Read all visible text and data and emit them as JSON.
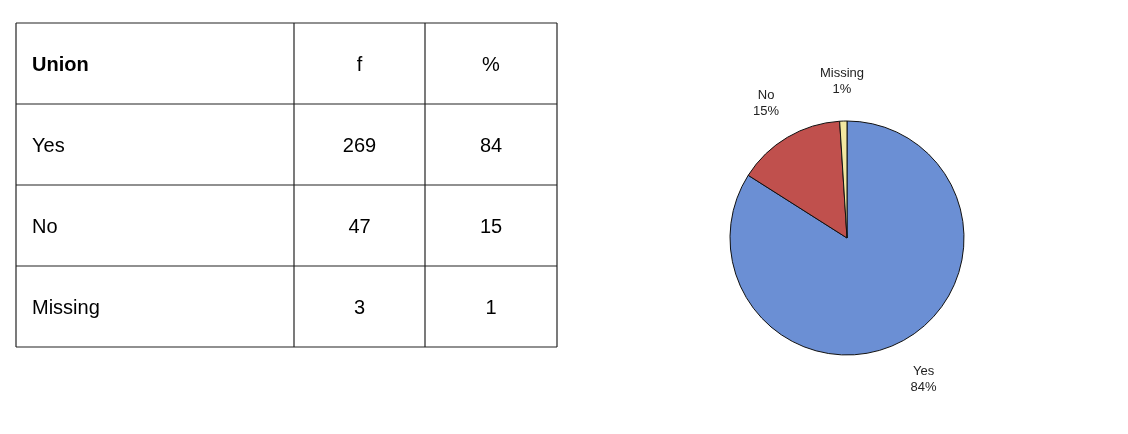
{
  "chart_data": [
    {
      "type": "other",
      "title": "Union",
      "data_labels": true,
      "categories": [
        "Yes",
        "No",
        "Missing"
      ],
      "series": [
        {
          "name": "f",
          "values": [
            269,
            47,
            3
          ]
        },
        {
          "name": "%",
          "values": [
            84,
            15,
            1
          ]
        }
      ]
    },
    {
      "type": "pie",
      "categories": [
        "Yes",
        "No",
        "Missing"
      ],
      "values": [
        84,
        15,
        1
      ],
      "colors": [
        "#6b8fd4",
        "#c0504d",
        "#f2e7a0"
      ],
      "value_labels": [
        "84%",
        "15%",
        "1%"
      ]
    }
  ]
}
